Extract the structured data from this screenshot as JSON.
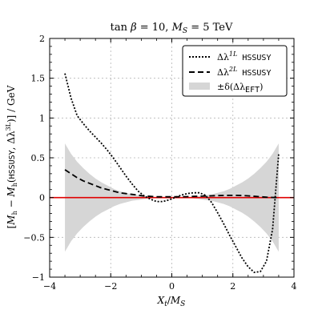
{
  "chart_data": {
    "type": "line",
    "title": "tan β = 10, M_S = 5 TeV",
    "title_parts": {
      "a": "tan ",
      "b": "β",
      "c": " = 10, ",
      "d": "M",
      "e": "S",
      "f": " = 5 TeV"
    },
    "xlabel": "X_t/M_S",
    "xlabel_parts": {
      "a": "X",
      "b": "t",
      "c": "/",
      "d": "M",
      "e": "S"
    },
    "ylabel": "[M_h − M_h(HSSUSY, Δλ^{3L})] / GeV",
    "ylabel_parts": {
      "a": "[",
      "b": "M",
      "c": "h",
      "d": " − ",
      "e": "M",
      "f": "h",
      "g": "(",
      "h": "HSSUSY",
      "i": ", Δλ",
      "j": "3L",
      "k": ")] / GeV"
    },
    "xlim": [
      -4,
      4
    ],
    "ylim": [
      -1,
      2
    ],
    "x_ticks": [
      -4,
      -2,
      0,
      2,
      4
    ],
    "x_tick_labels": [
      "−4",
      "−2",
      "0",
      "2",
      "4"
    ],
    "y_ticks": [
      -1,
      -0.5,
      0,
      0.5,
      1,
      1.5,
      2
    ],
    "y_tick_labels": [
      "−1",
      "−0.5",
      "0",
      "0.5",
      "1",
      "1.5",
      "2"
    ],
    "grid": true,
    "legend_position": "top-right",
    "legend": [
      {
        "pre": "Δλ",
        "sup": "1L",
        "post": " HSSUSY",
        "style": "dotted"
      },
      {
        "pre": "Δλ",
        "sup": "2L",
        "post": " HSSUSY",
        "style": "dashed"
      },
      {
        "pre": "±δ(Δλ",
        "sub": "EFT",
        "post": ")",
        "style": "band"
      }
    ],
    "series": [
      {
        "style": "dotted",
        "color": "#000000",
        "x": [
          -3.5,
          -3.3,
          -3.1,
          -2.9,
          -2.7,
          -2.5,
          -2.3,
          -2.1,
          -1.9,
          -1.7,
          -1.5,
          -1.3,
          -1.1,
          -0.9,
          -0.7,
          -0.5,
          -0.3,
          -0.1,
          0.1,
          0.3,
          0.5,
          0.7,
          0.9,
          1.1,
          1.3,
          1.5,
          1.7,
          1.9,
          2.1,
          2.3,
          2.5,
          2.7,
          2.9,
          3.1,
          3.3,
          3.5
        ],
        "values": [
          1.56,
          1.25,
          1.03,
          0.93,
          0.84,
          0.76,
          0.68,
          0.59,
          0.49,
          0.38,
          0.27,
          0.17,
          0.08,
          0.02,
          -0.02,
          -0.05,
          -0.05,
          -0.03,
          0.0,
          0.03,
          0.05,
          0.06,
          0.06,
          0.03,
          -0.06,
          -0.19,
          -0.33,
          -0.48,
          -0.62,
          -0.76,
          -0.87,
          -0.94,
          -0.93,
          -0.8,
          -0.4,
          0.55
        ]
      },
      {
        "style": "dashed",
        "color": "#000000",
        "x": [
          -3.5,
          -3.3,
          -3.1,
          -2.9,
          -2.7,
          -2.5,
          -2.3,
          -2.1,
          -1.9,
          -1.7,
          -1.5,
          -1.3,
          -1.1,
          -0.9,
          -0.7,
          -0.5,
          -0.3,
          -0.1,
          0.1,
          0.3,
          0.5,
          0.7,
          0.9,
          1.1,
          1.3,
          1.5,
          1.7,
          1.9,
          2.1,
          2.3,
          2.5,
          2.7,
          2.9,
          3.1,
          3.3,
          3.5
        ],
        "values": [
          0.35,
          0.3,
          0.25,
          0.21,
          0.18,
          0.15,
          0.12,
          0.1,
          0.08,
          0.06,
          0.05,
          0.04,
          0.03,
          0.02,
          0.015,
          0.01,
          0.01,
          0.01,
          0.01,
          0.01,
          0.012,
          0.015,
          0.018,
          0.02,
          0.022,
          0.025,
          0.027,
          0.028,
          0.028,
          0.026,
          0.022,
          0.016,
          0.01,
          0.005,
          0.002,
          0.0
        ]
      }
    ],
    "band": {
      "color": "#d6d6d6",
      "x": [
        -3.5,
        -3.3,
        -3.1,
        -2.9,
        -2.7,
        -2.5,
        -2.3,
        -2.1,
        -1.9,
        -1.7,
        -1.5,
        -1.3,
        -1.1,
        -0.9,
        -0.7,
        -0.5,
        -0.3,
        -0.1,
        0.1,
        0.3,
        0.5,
        0.7,
        0.9,
        1.1,
        1.3,
        1.5,
        1.7,
        1.9,
        2.1,
        2.3,
        2.5,
        2.7,
        2.9,
        3.1,
        3.3,
        3.5
      ],
      "half_width": [
        0.68,
        0.55,
        0.45,
        0.37,
        0.3,
        0.24,
        0.19,
        0.15,
        0.11,
        0.08,
        0.06,
        0.04,
        0.03,
        0.02,
        0.01,
        0.005,
        0.002,
        0.001,
        0.001,
        0.002,
        0.005,
        0.01,
        0.02,
        0.03,
        0.04,
        0.06,
        0.08,
        0.11,
        0.15,
        0.19,
        0.24,
        0.3,
        0.37,
        0.45,
        0.55,
        0.68
      ]
    },
    "reference_line": {
      "y": 0,
      "color": "#e00000"
    }
  }
}
